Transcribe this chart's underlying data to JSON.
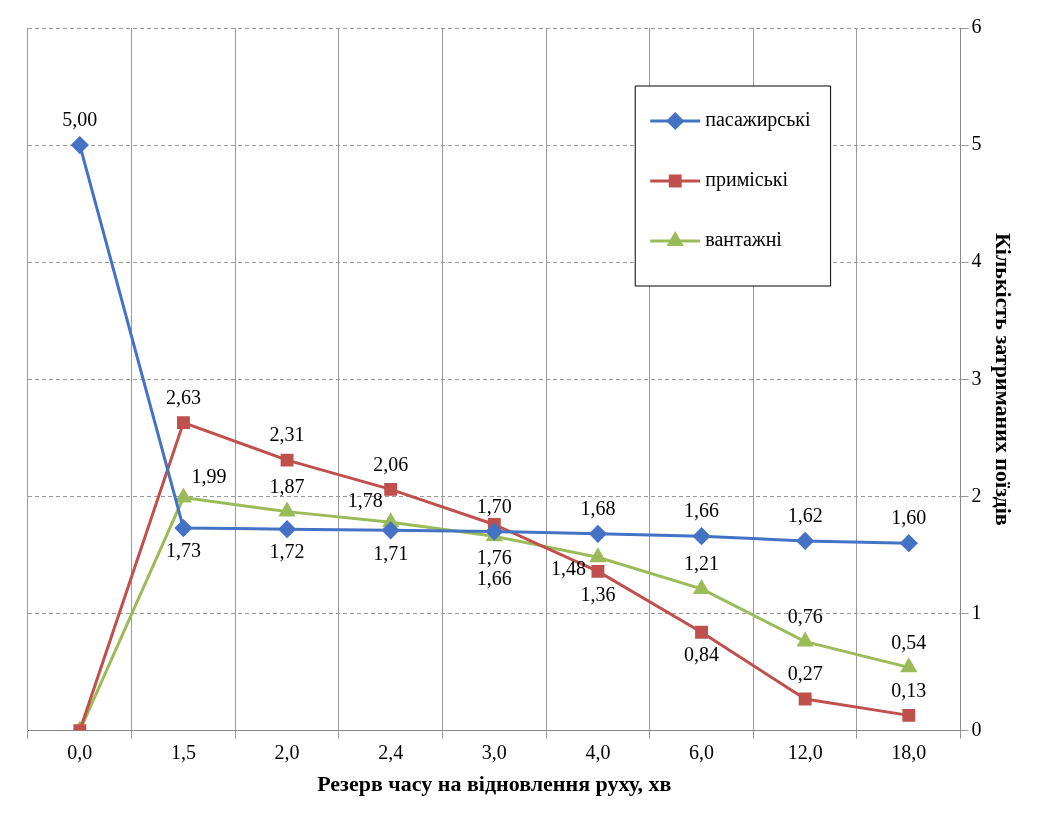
{
  "chart_data": {
    "type": "line",
    "xlabel": "Резерв часу на відновлення руху, хв",
    "ylabel": "Кількість затриманих поїздів",
    "categories": [
      "0,0",
      "1,5",
      "2,0",
      "2,4",
      "3,0",
      "4,0",
      "6,0",
      "12,0",
      "18,0"
    ],
    "series": [
      {
        "name": "пасажирські",
        "color": "#4472c4",
        "marker": "diamond",
        "values": [
          5.0,
          1.73,
          1.72,
          1.71,
          1.7,
          1.68,
          1.66,
          1.62,
          1.6
        ],
        "value_labels": [
          "5,00",
          "1,73",
          "1,72",
          "1,71",
          "1,70",
          "1,68",
          "1,66",
          "1,62",
          "1,60"
        ]
      },
      {
        "name": "приміські",
        "color": "#c0504d",
        "marker": "square",
        "values": [
          0,
          2.63,
          2.31,
          2.06,
          1.76,
          1.36,
          0.84,
          0.27,
          0.13
        ],
        "value_labels": [
          null,
          "2,63",
          "2,31",
          "2,06",
          "1,76",
          "1,36",
          "0,84",
          "0,27",
          "0,13"
        ]
      },
      {
        "name": "вантажні",
        "color": "#9bbb59",
        "marker": "triangle",
        "values": [
          0,
          1.99,
          1.87,
          1.78,
          1.66,
          1.48,
          1.21,
          0.76,
          0.54
        ],
        "value_labels": [
          null,
          "1,99",
          "1,87",
          "1,78",
          "1,66",
          "1,48",
          "1,21",
          "0,76",
          "0,54"
        ]
      }
    ],
    "ylim": [
      0,
      6
    ],
    "yticks": [
      0,
      1,
      2,
      3,
      4,
      5,
      6
    ],
    "grid": true,
    "legend": "top right"
  }
}
